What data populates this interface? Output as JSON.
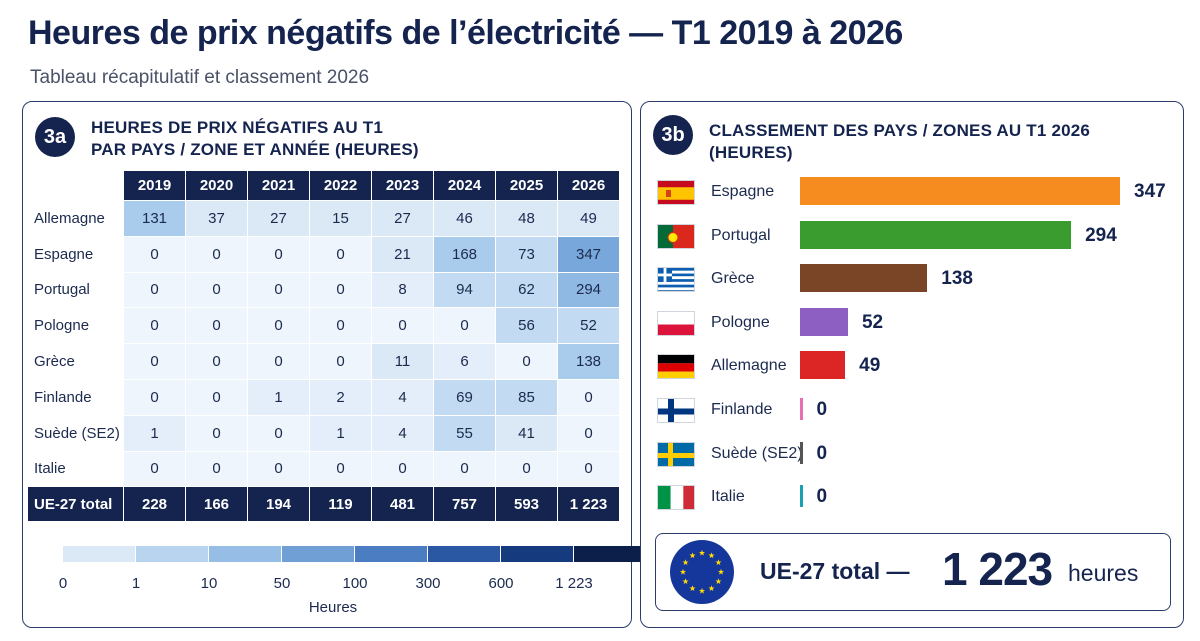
{
  "header": {
    "title": "Heures de prix négatifs de l’électricité — T1 2019 à 2026",
    "subtitle": "Tableau récapitulatif et classement 2026"
  },
  "panel_a": {
    "badge": "3a",
    "heading_line1": "HEURES DE PRIX NÉGATIFS AU T1",
    "heading_line2": "PAR PAYS / ZONE ET ANNÉE (HEURES)"
  },
  "panel_b": {
    "badge": "3b",
    "heading": "CLASSEMENT DES PAYS / ZONES AU T1 2026 (HEURES)"
  },
  "legend": {
    "ticks": [
      "0",
      "1",
      "10",
      "50",
      "100",
      "300",
      "600",
      "1 223"
    ],
    "label": "Heures",
    "colors": [
      "#dbe9f7",
      "#b9d4ef",
      "#95bde5",
      "#6f9fd5",
      "#4a7dc2",
      "#2a58a3",
      "#163a7e",
      "#0c1e4a"
    ]
  },
  "eu_summary": {
    "label": "UE-27 total —",
    "value": "1 223",
    "unit": "heures"
  },
  "chart_data": [
    {
      "type": "heatmap",
      "years": [
        "2019",
        "2020",
        "2021",
        "2022",
        "2023",
        "2024",
        "2025",
        "2026"
      ],
      "rows": [
        {
          "label": "Allemagne",
          "values": [
            131,
            37,
            27,
            15,
            27,
            46,
            48,
            49
          ]
        },
        {
          "label": "Espagne",
          "values": [
            0,
            0,
            0,
            0,
            21,
            168,
            73,
            347
          ]
        },
        {
          "label": "Portugal",
          "values": [
            0,
            0,
            0,
            0,
            8,
            94,
            62,
            294
          ]
        },
        {
          "label": "Pologne",
          "values": [
            0,
            0,
            0,
            0,
            0,
            0,
            56,
            52
          ]
        },
        {
          "label": "Grèce",
          "values": [
            0,
            0,
            0,
            0,
            11,
            6,
            0,
            138
          ]
        },
        {
          "label": "Finlande",
          "values": [
            0,
            0,
            1,
            2,
            4,
            69,
            85,
            0
          ]
        },
        {
          "label": "Suède (SE2)",
          "values": [
            1,
            0,
            0,
            1,
            4,
            55,
            41,
            0
          ]
        },
        {
          "label": "Italie",
          "values": [
            0,
            0,
            0,
            0,
            0,
            0,
            0,
            0
          ]
        }
      ],
      "total": {
        "label": "UE-27 total",
        "values": [
          "228",
          "166",
          "194",
          "119",
          "481",
          "757",
          "593",
          "1 223"
        ]
      }
    },
    {
      "type": "bar",
      "orientation": "horizontal",
      "xlim": [
        0,
        347
      ],
      "bars": [
        {
          "label": "Espagne",
          "value": 347,
          "color": "#f68c1f",
          "flag": "flag-spain"
        },
        {
          "label": "Portugal",
          "value": 294,
          "color": "#3a9b2e",
          "flag": "flag-portugal"
        },
        {
          "label": "Grèce",
          "value": 138,
          "color": "#7a4527",
          "flag": "flag-greece"
        },
        {
          "label": "Pologne",
          "value": 52,
          "color": "#8e5fc2",
          "flag": "flag-poland"
        },
        {
          "label": "Allemagne",
          "value": 49,
          "color": "#dc2626",
          "flag": "flag-germany"
        },
        {
          "label": "Finlande",
          "value": 0,
          "color": "#e86fb0",
          "flag": "flag-finland"
        },
        {
          "label": "Suède (SE2)",
          "value": 0,
          "color": "#555555",
          "flag": "flag-sweden"
        },
        {
          "label": "Italie",
          "value": 0,
          "color": "#1aa0b0",
          "flag": "flag-italy"
        }
      ]
    }
  ]
}
